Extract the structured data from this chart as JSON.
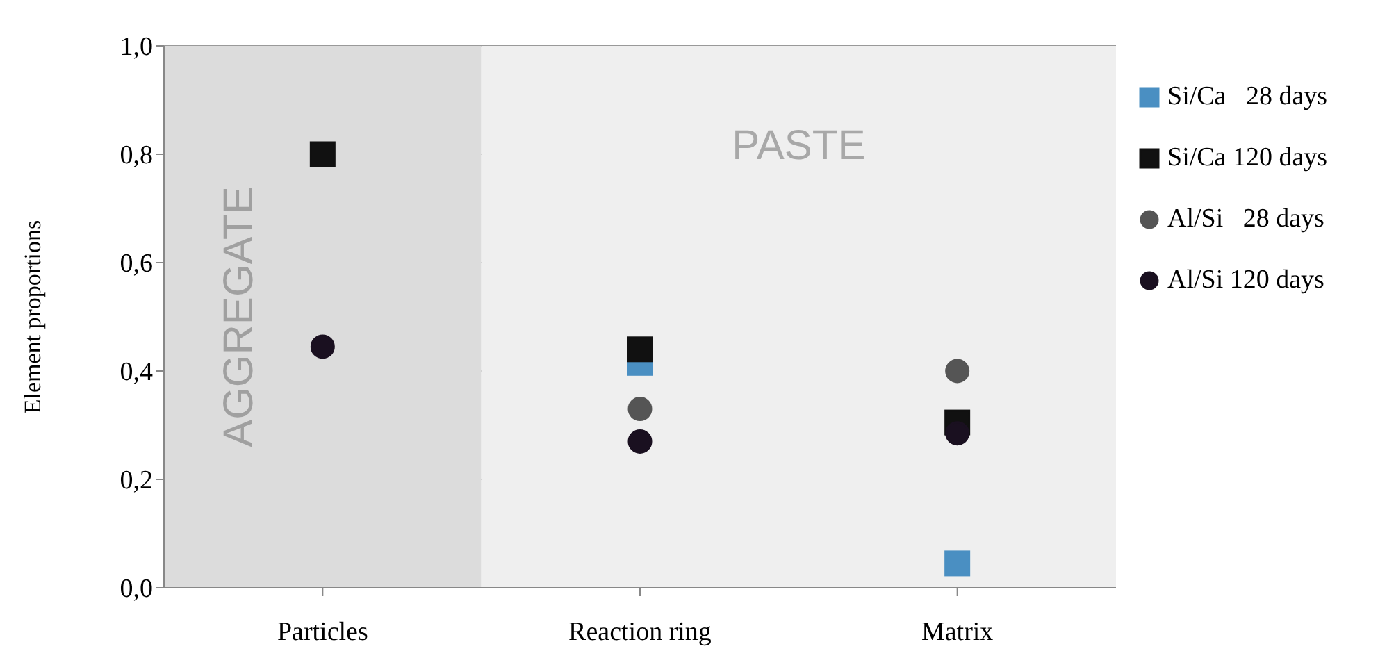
{
  "chart_data": {
    "type": "scatter",
    "ylabel": "Element proportions",
    "categories": [
      "Particles",
      "Reaction ring",
      "Matrix"
    ],
    "series": [
      {
        "name": "Si/Ca   28 days",
        "color": "#4a8fc2",
        "marker": "square",
        "values": [
          null,
          0.415,
          0.045
        ]
      },
      {
        "name": "Si/Ca 120 days",
        "color": "#111111",
        "marker": "square",
        "values": [
          0.8,
          0.44,
          0.305
        ]
      },
      {
        "name": "Al/Si   28 days",
        "color": "#555555",
        "marker": "circle",
        "values": [
          null,
          0.33,
          0.4
        ]
      },
      {
        "name": "Al/Si 120 days",
        "color": "#1a1020",
        "marker": "circle",
        "values": [
          0.445,
          0.27,
          0.285
        ]
      }
    ],
    "ylim": [
      0,
      1
    ],
    "yticks": [
      {
        "value": 0,
        "label": "0,0"
      },
      {
        "value": 0.2,
        "label": "0,2"
      },
      {
        "value": 0.4,
        "label": "0,4"
      },
      {
        "value": 0.6,
        "label": "0,6"
      },
      {
        "value": 0.8,
        "label": "0,8"
      },
      {
        "value": 1,
        "label": "1,0"
      }
    ],
    "bands": [
      {
        "axis": "x",
        "from": "Particles",
        "to": "Particles",
        "label": "AGGREGATE",
        "color": "#dcdcdc"
      },
      {
        "axis": "x",
        "from": "Reaction ring",
        "to": "Matrix",
        "label": "PASTE",
        "color": "#efefef"
      }
    ],
    "grid": "y",
    "legend": "right"
  }
}
